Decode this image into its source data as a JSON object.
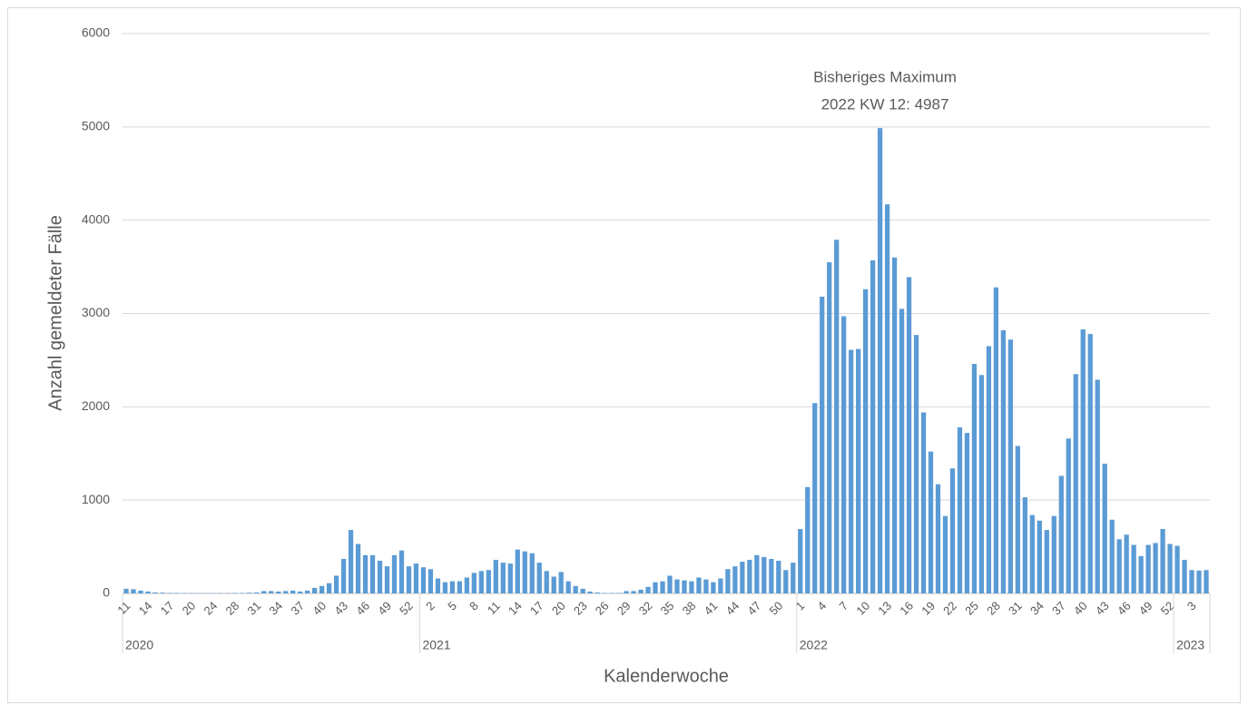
{
  "chart_data": {
    "type": "bar",
    "y_label": "Anzahl gemeldeter Fälle",
    "x_label": "Kalenderwoche",
    "annotation": [
      "Bisheriges Maximum",
      "2022 KW 12: 4987"
    ],
    "color": "#5b9bd5",
    "ylim": [
      0,
      6000
    ],
    "yticks": [
      0,
      1000,
      2000,
      3000,
      4000,
      5000,
      6000
    ],
    "grid": true,
    "groups": [
      {
        "label": "2020",
        "size": 41
      },
      {
        "label": "2021",
        "size": 52
      },
      {
        "label": "2022",
        "size": 52
      },
      {
        "label": "2023",
        "size": 5
      }
    ],
    "categories": [
      "11",
      null,
      null,
      "14",
      null,
      null,
      "17",
      null,
      null,
      "20",
      null,
      null,
      "24",
      null,
      null,
      "28",
      null,
      null,
      "31",
      null,
      null,
      "34",
      null,
      null,
      "37",
      null,
      null,
      "40",
      null,
      null,
      "43",
      null,
      null,
      "46",
      null,
      null,
      "49",
      null,
      null,
      "52",
      null,
      null,
      "2",
      null,
      null,
      "5",
      null,
      null,
      "8",
      null,
      null,
      "11",
      null,
      null,
      "14",
      null,
      null,
      "17",
      null,
      null,
      "20",
      null,
      null,
      "23",
      null,
      null,
      "26",
      null,
      null,
      "29",
      null,
      null,
      "32",
      null,
      null,
      "35",
      null,
      null,
      "38",
      null,
      null,
      "41",
      null,
      null,
      "44",
      null,
      null,
      "47",
      null,
      null,
      "50",
      null,
      null,
      "1",
      null,
      null,
      "4",
      null,
      null,
      "7",
      null,
      null,
      "10",
      null,
      null,
      "13",
      null,
      null,
      "16",
      null,
      null,
      "19",
      null,
      null,
      "22",
      null,
      null,
      "25",
      null,
      null,
      "28",
      null,
      null,
      "31",
      null,
      null,
      "34",
      null,
      null,
      "37",
      null,
      null,
      "40",
      null,
      null,
      "43",
      null,
      null,
      "46",
      null,
      null,
      "49",
      null,
      null,
      "52",
      null,
      null,
      "3",
      null,
      null
    ],
    "values": [
      50,
      45,
      30,
      20,
      10,
      8,
      5,
      5,
      3,
      3,
      3,
      3,
      3,
      3,
      3,
      5,
      5,
      8,
      10,
      25,
      25,
      20,
      25,
      30,
      20,
      30,
      60,
      80,
      110,
      190,
      370,
      680,
      530,
      410,
      410,
      350,
      290,
      410,
      460,
      290,
      320,
      280,
      260,
      160,
      120,
      130,
      130,
      170,
      220,
      240,
      250,
      360,
      330,
      320,
      470,
      450,
      430,
      330,
      240,
      180,
      230,
      130,
      80,
      50,
      20,
      10,
      5,
      5,
      5,
      25,
      25,
      40,
      70,
      120,
      130,
      190,
      150,
      140,
      130,
      170,
      150,
      120,
      160,
      260,
      290,
      340,
      360,
      410,
      390,
      370,
      350,
      250,
      330,
      690,
      1140,
      2040,
      3180,
      3550,
      3790,
      2970,
      2610,
      2620,
      3260,
      3570,
      4987,
      4170,
      3600,
      3050,
      3390,
      2770,
      1940,
      1520,
      1170,
      830,
      1340,
      1780,
      1720,
      2460,
      2340,
      2650,
      3280,
      2820,
      2720,
      1580,
      1030,
      840,
      780,
      680,
      830,
      1260,
      1660,
      2350,
      2830,
      2780,
      2290,
      1390,
      790,
      580,
      630,
      520,
      400,
      520,
      540,
      690,
      530,
      510,
      360,
      250,
      245,
      250
    ]
  }
}
